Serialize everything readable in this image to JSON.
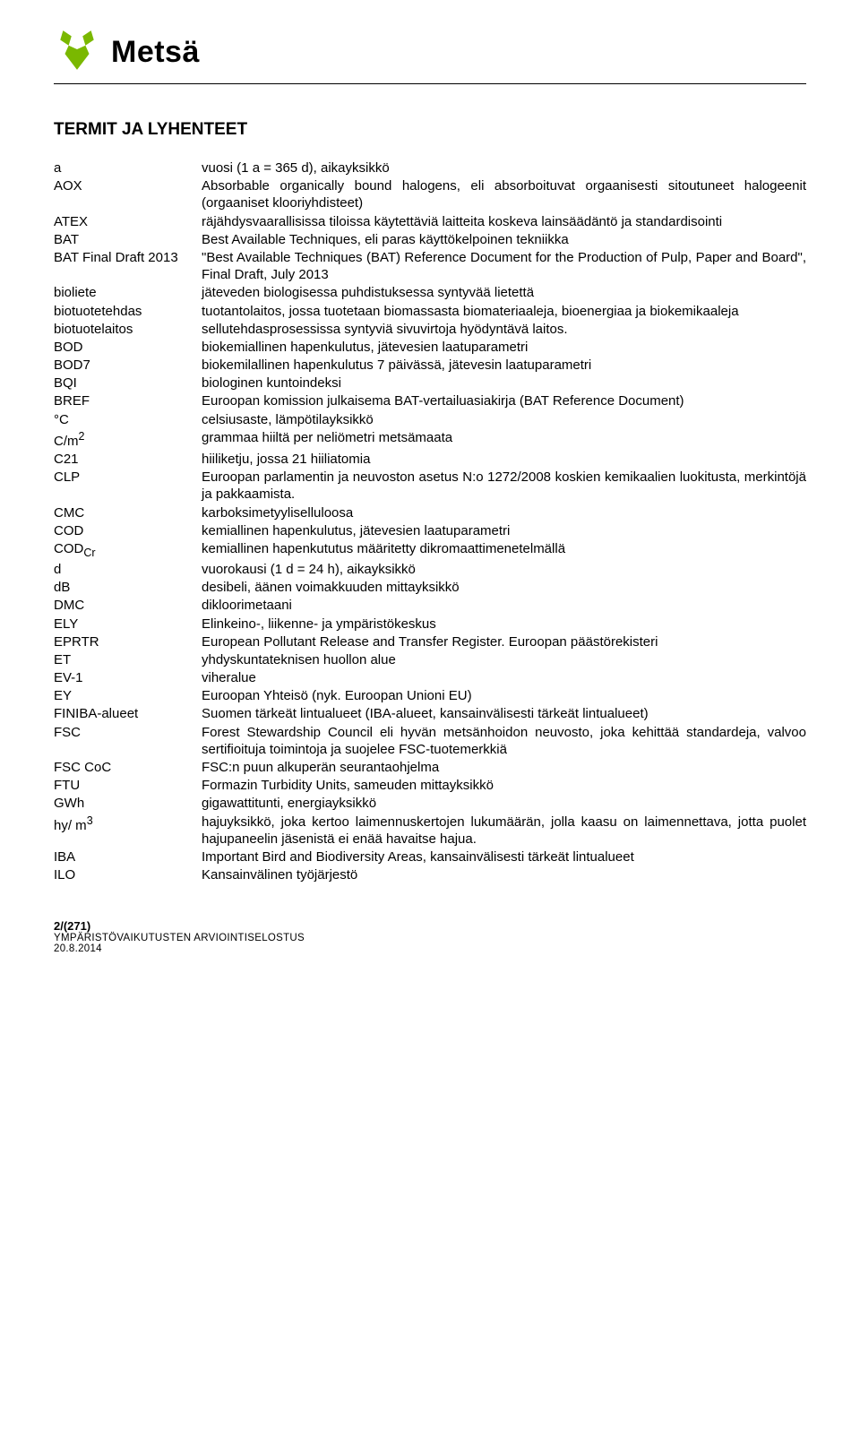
{
  "brand": {
    "name": "Metsä",
    "logo_color": "#7ab800"
  },
  "title": "TERMIT JA LYHENTEET",
  "terms": [
    {
      "key": "a",
      "def": "vuosi (1 a = 365 d), aikayksikkö"
    },
    {
      "key": "AOX",
      "def": "Absorbable organically bound halogens, eli absorboituvat orgaanisesti sitoutuneet halogeenit (orgaaniset klooriyhdisteet)"
    },
    {
      "key": "ATEX",
      "def": "räjähdysvaarallisissa tiloissa käytettäviä laitteita koskeva lainsäädäntö ja standardisointi"
    },
    {
      "key": "BAT",
      "def": "Best Available Techniques, eli paras käyttökelpoinen tekniikka"
    },
    {
      "key": "BAT Final Draft 2013",
      "def": "\"Best Available Techniques (BAT) Reference Document for the Production of Pulp, Paper and Board\", Final Draft, July 2013"
    },
    {
      "key": "bioliete",
      "def": "jäteveden biologisessa puhdistuksessa syntyvää lietettä"
    },
    {
      "key": "biotuotetehdas",
      "def": "tuotantolaitos, jossa tuotetaan biomassasta biomateriaaleja, bioenergiaa ja biokemikaaleja"
    },
    {
      "key": "biotuotelaitos",
      "def": "sellutehdasprosessissa syntyviä sivuvirtoja hyödyntävä laitos."
    },
    {
      "key": "BOD",
      "def": "biokemiallinen hapenkulutus, jätevesien laatuparametri"
    },
    {
      "key": "BOD7",
      "def": "biokemilallinen hapenkulutus 7 päivässä, jätevesin laatuparametri"
    },
    {
      "key": "BQI",
      "def": "biologinen kuntoindeksi"
    },
    {
      "key": "BREF",
      "def": "Euroopan komission julkaisema BAT-vertailuasiakirja (BAT Reference Document)"
    },
    {
      "key": "°C",
      "def": "celsiusaste, lämpötilayksikkö"
    },
    {
      "key": "C/m²",
      "super_key": "2",
      "base_key": "C/m",
      "def": "grammaa hiiltä per neliömetri metsämaata"
    },
    {
      "key": "C21",
      "def": "hiiliketju, jossa 21 hiiliatomia"
    },
    {
      "key": "CLP",
      "def": "Euroopan parlamentin ja neuvoston asetus N:o 1272/2008 koskien kemikaalien luokitusta, merkintöjä ja pakkaamista."
    },
    {
      "key": "CMC",
      "def": "karboksimetyyliselluloosa"
    },
    {
      "key": "COD",
      "def": "kemiallinen hapenkulutus, jätevesien laatuparametri"
    },
    {
      "key": "CODCr",
      "sub_key": "Cr",
      "base_key": "COD",
      "def": "kemiallinen hapenkututus määritetty dikromaattimenetelmällä"
    },
    {
      "key": "d",
      "def": "vuorokausi (1 d = 24 h), aikayksikkö"
    },
    {
      "key": "dB",
      "def": "desibeli, äänen voimakkuuden mittayksikkö"
    },
    {
      "key": "DMC",
      "def": "dikloorimetaani"
    },
    {
      "key": "ELY",
      "def": "Elinkeino-, liikenne- ja ympäristökeskus"
    },
    {
      "key": "EPRTR",
      "def": "European Pollutant Release and Transfer Register. Euroopan päästörekisteri"
    },
    {
      "key": "ET",
      "def": "yhdyskuntateknisen huollon alue"
    },
    {
      "key": "EV-1",
      "def": "viheralue"
    },
    {
      "key": "EY",
      "def": "Euroopan Yhteisö (nyk. Euroopan Unioni EU)"
    },
    {
      "key": "FINIBA-alueet",
      "def": "Suomen tärkeät lintualueet (IBA-alueet, kansainvälisesti tärkeät lintualueet)"
    },
    {
      "key": "FSC",
      "def": "Forest Stewardship Council eli hyvän metsänhoidon neuvosto, joka kehittää standardeja, valvoo sertifioituja toimintoja ja suojelee FSC-tuotemerkkiä"
    },
    {
      "key": "FSC CoC",
      "def": "FSC:n puun alkuperän seurantaohjelma"
    },
    {
      "key": "FTU",
      "def": "Formazin Turbidity Units, sameuden mittayksikkö"
    },
    {
      "key": "GWh",
      "def": "gigawattitunti, energiayksikkö"
    },
    {
      "key": "hy/ m³",
      "super_key": "3",
      "base_key": "hy/ m",
      "def": "hajuyksikkö, joka kertoo laimennuskertojen lukumäärän, jolla kaasu on laimennettava, jotta puolet hajupaneelin jäsenistä ei enää havaitse hajua."
    },
    {
      "key": "IBA",
      "def": "Important Bird and Biodiversity Areas, kansainvälisesti tärkeät lintualueet"
    },
    {
      "key": "ILO",
      "def": "Kansainvälinen työjärjestö"
    }
  ],
  "footer": {
    "page": "2/(271)",
    "sub": "YMPÄRISTÖVAIKUTUSTEN ARVIOINTISELOSTUS",
    "date": "20.8.2014"
  }
}
